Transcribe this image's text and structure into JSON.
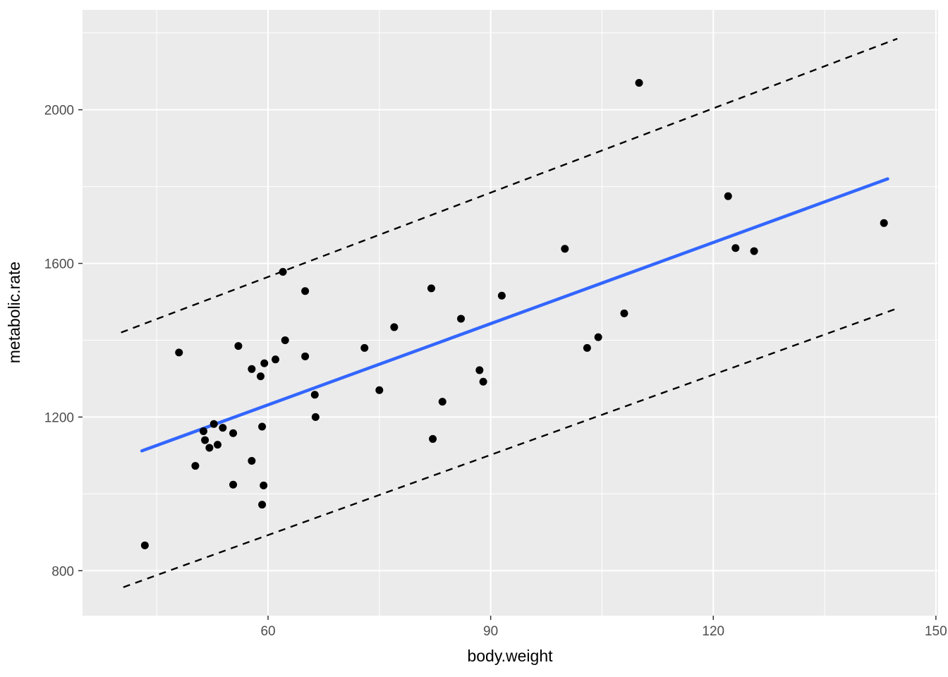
{
  "chart_data": {
    "type": "scatter",
    "title": "",
    "xlabel": "body.weight",
    "ylabel": "metabolic.rate",
    "x_ticks": [
      60,
      90,
      120,
      150
    ],
    "y_ticks": [
      800,
      1200,
      1600,
      2000
    ],
    "x_minor_ticks": [
      45,
      75,
      105,
      135
    ],
    "y_minor_ticks": [
      1000,
      1400,
      1800,
      2200
    ],
    "xlim": [
      35,
      150.3
    ],
    "ylim": [
      683,
      2260
    ],
    "grid": "on",
    "legend": "none",
    "colors": {
      "panel_background": "#EBEBEB",
      "gridline": "#FFFFFF",
      "point": "#000000",
      "regression_line": "#3366FF",
      "prediction_interval_line": "#000000",
      "tick_label": "#4D4D4D",
      "axis_title": "#000000",
      "tick_mark": "#333333"
    },
    "points": [
      [
        43.4,
        866
      ],
      [
        48.0,
        1368
      ],
      [
        50.2,
        1073
      ],
      [
        51.3,
        1163
      ],
      [
        51.5,
        1140
      ],
      [
        52.1,
        1120
      ],
      [
        52.7,
        1182
      ],
      [
        53.2,
        1128
      ],
      [
        53.9,
        1172
      ],
      [
        55.3,
        1158
      ],
      [
        55.3,
        1024
      ],
      [
        56.0,
        1385
      ],
      [
        57.8,
        1325
      ],
      [
        57.8,
        1086
      ],
      [
        59.0,
        1306
      ],
      [
        59.2,
        1175
      ],
      [
        59.2,
        972
      ],
      [
        59.4,
        1022
      ],
      [
        59.5,
        1340
      ],
      [
        61.0,
        1350
      ],
      [
        62.0,
        1578
      ],
      [
        62.3,
        1400
      ],
      [
        65.0,
        1528
      ],
      [
        65.0,
        1358
      ],
      [
        66.3,
        1258
      ],
      [
        66.4,
        1200
      ],
      [
        73.0,
        1380
      ],
      [
        75.0,
        1270
      ],
      [
        77.0,
        1434
      ],
      [
        82.0,
        1535
      ],
      [
        82.2,
        1143
      ],
      [
        83.5,
        1240
      ],
      [
        86.0,
        1456
      ],
      [
        88.5,
        1322
      ],
      [
        89.0,
        1292
      ],
      [
        91.5,
        1516
      ],
      [
        100.0,
        1638
      ],
      [
        103.0,
        1380
      ],
      [
        104.5,
        1408
      ],
      [
        108.0,
        1470
      ],
      [
        110.0,
        2070
      ],
      [
        122.0,
        1775
      ],
      [
        123.0,
        1640
      ],
      [
        125.5,
        1632
      ],
      [
        143.0,
        1705
      ]
    ],
    "regression_line": {
      "name": "linear fit",
      "style": "solid",
      "x": [
        43.0,
        143.5
      ],
      "y": [
        1112,
        1820
      ]
    },
    "prediction_interval": {
      "style": "dashed",
      "upper": {
        "x": [
          40.2,
          144.8
        ],
        "y": [
          1420,
          2185
        ]
      },
      "lower": {
        "x": [
          40.5,
          144.8
        ],
        "y": [
          757,
          1483
        ]
      }
    }
  }
}
